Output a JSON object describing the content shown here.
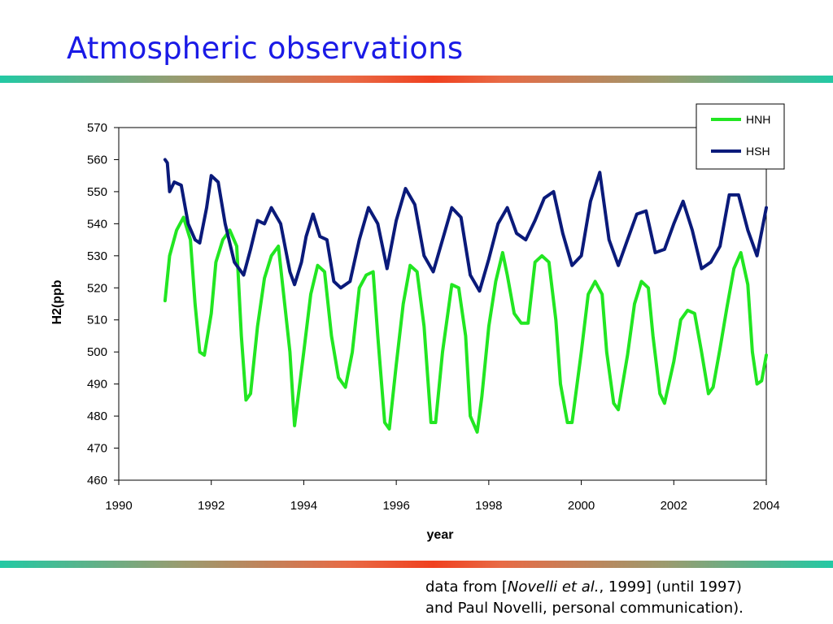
{
  "slide": {
    "title": "Atmospheric observations",
    "colors": {
      "title": "#1a1ae6",
      "rule_left": "#22c9a4",
      "rule_center": "#f0401f"
    }
  },
  "citation": {
    "line1_pre": "data from [",
    "line1_em": "Novelli et al.",
    "line1_post": ", 1999] (until 1997)",
    "line2": "and Paul Novelli, personal communication)."
  },
  "chart_data": {
    "type": "line",
    "title": "",
    "xlabel": "year",
    "ylabel": "H2(ppb",
    "xlim": [
      1990,
      2004
    ],
    "ylim": [
      460,
      570
    ],
    "xticks": [
      1990,
      1992,
      1994,
      1996,
      1998,
      2000,
      2002,
      2004
    ],
    "yticks": [
      460,
      470,
      480,
      490,
      500,
      510,
      520,
      530,
      540,
      550,
      560,
      570
    ],
    "grid": false,
    "legend_position": "top-right",
    "series": [
      {
        "name": "HNH",
        "color": "#22e622",
        "x": [
          1991.0,
          1991.1,
          1991.25,
          1991.4,
          1991.55,
          1991.65,
          1991.75,
          1991.85,
          1992.0,
          1992.1,
          1992.25,
          1992.4,
          1992.55,
          1992.65,
          1992.75,
          1992.85,
          1993.0,
          1993.15,
          1993.3,
          1993.45,
          1993.55,
          1993.7,
          1993.8,
          1994.0,
          1994.15,
          1994.3,
          1994.45,
          1994.6,
          1994.75,
          1994.9,
          1995.05,
          1995.2,
          1995.35,
          1995.5,
          1995.6,
          1995.75,
          1995.85,
          1996.0,
          1996.15,
          1996.3,
          1996.45,
          1996.6,
          1996.75,
          1996.85,
          1997.0,
          1997.2,
          1997.35,
          1997.5,
          1997.6,
          1997.75,
          1997.85,
          1998.0,
          1998.15,
          1998.3,
          1998.4,
          1998.55,
          1998.7,
          1998.85,
          1999.0,
          1999.15,
          1999.3,
          1999.45,
          1999.55,
          1999.7,
          1999.8,
          2000.0,
          2000.15,
          2000.3,
          2000.45,
          2000.55,
          2000.7,
          2000.8,
          2001.0,
          2001.15,
          2001.3,
          2001.45,
          2001.55,
          2001.7,
          2001.8,
          2002.0,
          2002.15,
          2002.3,
          2002.45,
          2002.6,
          2002.75,
          2002.85,
          2003.0,
          2003.15,
          2003.3,
          2003.45,
          2003.6,
          2003.7,
          2003.8,
          2003.9,
          2004.0
        ],
        "values": [
          516,
          530,
          538,
          542,
          535,
          515,
          500,
          499,
          512,
          528,
          535,
          538,
          533,
          505,
          485,
          487,
          508,
          523,
          530,
          533,
          520,
          500,
          477,
          500,
          518,
          527,
          525,
          505,
          492,
          489,
          500,
          520,
          524,
          525,
          505,
          478,
          476,
          496,
          515,
          527,
          525,
          508,
          478,
          478,
          500,
          521,
          520,
          505,
          480,
          475,
          486,
          508,
          522,
          531,
          524,
          512,
          509,
          509,
          528,
          530,
          528,
          510,
          490,
          478,
          478,
          500,
          518,
          522,
          518,
          500,
          484,
          482,
          499,
          515,
          522,
          520,
          505,
          487,
          484,
          497,
          510,
          513,
          512,
          500,
          487,
          489,
          501,
          514,
          526,
          531,
          521,
          500,
          490,
          491,
          499
        ]
      },
      {
        "name": "HSH",
        "color": "#0a1a7a",
        "x": [
          1991.0,
          1991.05,
          1991.1,
          1991.2,
          1991.35,
          1991.5,
          1991.65,
          1991.75,
          1991.9,
          1992.0,
          1992.15,
          1992.3,
          1992.5,
          1992.7,
          1992.85,
          1993.0,
          1993.15,
          1993.3,
          1993.5,
          1993.7,
          1993.8,
          1993.95,
          1994.05,
          1994.2,
          1994.35,
          1994.5,
          1994.65,
          1994.8,
          1995.0,
          1995.2,
          1995.4,
          1995.6,
          1995.8,
          1996.0,
          1996.2,
          1996.4,
          1996.6,
          1996.8,
          1997.0,
          1997.2,
          1997.4,
          1997.6,
          1997.8,
          1998.0,
          1998.2,
          1998.4,
          1998.6,
          1998.8,
          1999.0,
          1999.2,
          1999.4,
          1999.6,
          1999.8,
          2000.0,
          2000.2,
          2000.4,
          2000.6,
          2000.8,
          2001.0,
          2001.2,
          2001.4,
          2001.6,
          2001.8,
          2002.0,
          2002.2,
          2002.4,
          2002.6,
          2002.8,
          2003.0,
          2003.2,
          2003.4,
          2003.6,
          2003.8,
          2004.0
        ],
        "values": [
          560,
          559,
          550,
          553,
          552,
          540,
          535,
          534,
          545,
          555,
          553,
          540,
          528,
          524,
          532,
          541,
          540,
          545,
          540,
          525,
          521,
          528,
          536,
          543,
          536,
          535,
          522,
          520,
          522,
          535,
          545,
          540,
          526,
          541,
          551,
          546,
          530,
          525,
          535,
          545,
          542,
          524,
          519,
          529,
          540,
          545,
          537,
          535,
          541,
          548,
          550,
          537,
          527,
          530,
          547,
          556,
          535,
          527,
          535,
          543,
          544,
          531,
          532,
          540,
          547,
          538,
          526,
          528,
          533,
          549,
          549,
          538,
          530,
          545
        ]
      }
    ]
  }
}
